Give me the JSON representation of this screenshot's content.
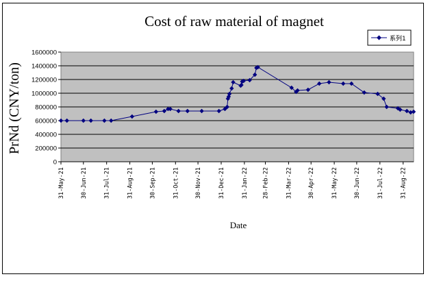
{
  "chart_data": {
    "type": "line",
    "title": "Cost of raw material of magnet",
    "xlabel": "Date",
    "ylabel": "PrNd (CNY/ton)",
    "ylim": [
      0,
      1600000
    ],
    "y_ticks": [
      "0",
      "200000",
      "400000",
      "600000",
      "800000",
      "1000000",
      "1200000",
      "1400000",
      "1600000"
    ],
    "x_ticks": [
      "31-May-21",
      "30-Jun-21",
      "31-Jul-21",
      "31-Aug-21",
      "30-Sep-21",
      "31-Oct-21",
      "30-Nov-21",
      "31-Dec-21",
      "31-Jan-22",
      "28-Feb-22",
      "31-Mar-22",
      "30-Apr-22",
      "31-May-22",
      "30-Jun-22",
      "31-Jul-22",
      "31-Aug-22"
    ],
    "grid": true,
    "legend_position": "top-right",
    "series": [
      {
        "name": "系列1",
        "color": "#000080",
        "x": [
          "2021-05-31",
          "2021-06-08",
          "2021-06-30",
          "2021-07-10",
          "2021-07-28",
          "2021-08-06",
          "2021-09-03",
          "2021-10-05",
          "2021-10-16",
          "2021-10-21",
          "2021-10-24",
          "2021-11-04",
          "2021-11-16",
          "2021-12-05",
          "2021-12-28",
          "2022-01-05",
          "2022-01-08",
          "2022-01-09",
          "2022-01-10",
          "2022-01-11",
          "2022-01-14",
          "2022-01-16",
          "2022-01-26",
          "2022-01-27",
          "2022-01-28",
          "2022-01-30",
          "2022-02-07",
          "2022-02-14",
          "2022-02-16",
          "2022-02-18",
          "2022-04-04",
          "2022-04-10",
          "2022-04-12",
          "2022-04-26",
          "2022-05-11",
          "2022-05-24",
          "2022-06-12",
          "2022-06-23",
          "2022-07-10",
          "2022-07-28",
          "2022-08-05",
          "2022-08-09",
          "2022-08-24",
          "2022-08-27",
          "2022-09-05",
          "2022-09-10",
          "2022-09-14"
        ],
        "values": [
          600000,
          600000,
          600000,
          600000,
          600000,
          600000,
          660000,
          730000,
          740000,
          770000,
          770000,
          740000,
          740000,
          740000,
          740000,
          770000,
          800000,
          920000,
          950000,
          990000,
          1070000,
          1160000,
          1110000,
          1120000,
          1170000,
          1180000,
          1190000,
          1270000,
          1370000,
          1380000,
          1080000,
          1020000,
          1040000,
          1050000,
          1140000,
          1160000,
          1140000,
          1140000,
          1010000,
          990000,
          920000,
          800000,
          780000,
          760000,
          740000,
          720000,
          730000
        ]
      }
    ]
  }
}
